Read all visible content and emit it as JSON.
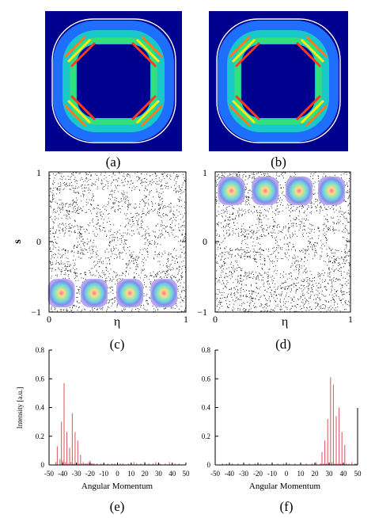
{
  "panels": {
    "a": {
      "label": "(a)"
    },
    "b": {
      "label": "(b)"
    },
    "c": {
      "label": "(c)"
    },
    "d": {
      "label": "(d)"
    },
    "e": {
      "label": "(e)"
    },
    "f": {
      "label": "(f)"
    }
  },
  "colors": {
    "field_bg": "#00008f",
    "ring": "#19c8c8",
    "boundary": "#ffffff",
    "bar": "#e0606a",
    "dots": "#000000"
  },
  "chart_data": [
    {
      "type": "scatter",
      "panel": "c",
      "xlabel": "η",
      "ylabel": "s",
      "xlim": [
        0,
        1
      ],
      "ylim": [
        -1,
        1
      ],
      "xticks": [
        "0",
        "1"
      ],
      "yticks": [
        "1",
        "0",
        "−1"
      ],
      "islands_s": -0.73,
      "islands_eta": [
        0.09,
        0.33,
        0.59,
        0.84
      ]
    },
    {
      "type": "scatter",
      "panel": "d",
      "xlabel": "η",
      "ylabel": "",
      "xlim": [
        0,
        1
      ],
      "ylim": [
        -1,
        1
      ],
      "xticks": [
        "0",
        "1"
      ],
      "yticks": [
        "1",
        "0",
        "−1"
      ],
      "islands_s": 0.73,
      "islands_eta": [
        0.12,
        0.37,
        0.62,
        0.86
      ]
    },
    {
      "type": "bar",
      "panel": "e",
      "xlabel": "Angular Momentum",
      "ylabel": "Intensity [a.u.]",
      "xlim": [
        -50,
        50
      ],
      "ylim": [
        0,
        0.8
      ],
      "xticks": [
        "-50",
        "-40",
        "-30",
        "-20",
        "-10",
        "0",
        "10",
        "20",
        "30",
        "40",
        "50"
      ],
      "yticks": [
        "0",
        "0.2",
        "0.4",
        "0.6",
        "0.8"
      ],
      "x": [
        -45,
        -44,
        -42,
        -41,
        -40,
        -39,
        -38,
        -37,
        -36,
        -35,
        -34,
        -33,
        -32,
        -31,
        -30,
        -29,
        -28,
        -27,
        -26,
        -25,
        -24,
        -23,
        -22,
        -21,
        -20,
        -19,
        -18,
        -17,
        -15,
        -12,
        -10,
        -7,
        -4,
        -2,
        0,
        2,
        4,
        8,
        12,
        14,
        17,
        20,
        23,
        26,
        28,
        31,
        35,
        38,
        42,
        45
      ],
      "values": [
        0.02,
        0.13,
        0.04,
        0.3,
        0.03,
        0.57,
        0.02,
        0.23,
        0.01,
        0.12,
        0.02,
        0.36,
        0.01,
        0.23,
        0.01,
        0.17,
        0.01,
        0.07,
        0.01,
        0.02,
        0.01,
        0.01,
        0.01,
        0.02,
        0.03,
        0.01,
        0.01,
        0.01,
        0.01,
        0.01,
        0.01,
        0.01,
        0.01,
        0.01,
        0.01,
        0.01,
        0.01,
        0.01,
        0.02,
        0.01,
        0.01,
        0.02,
        0.01,
        0.01,
        0.02,
        0.01,
        0.01,
        0.02,
        0.01,
        0.01
      ]
    },
    {
      "type": "bar",
      "panel": "f",
      "xlabel": "Angular Momentum",
      "ylabel": "",
      "xlim": [
        -50,
        50
      ],
      "ylim": [
        0,
        0.8
      ],
      "xticks": [
        "-50",
        "-40",
        "-30",
        "-20",
        "-10",
        "0",
        "10",
        "20",
        "30",
        "40",
        "50"
      ],
      "yticks": [
        "0",
        "0.2",
        "0.4",
        "0.6",
        "0.8"
      ],
      "x": [
        -45,
        -42,
        -38,
        -34,
        -30,
        -26,
        -22,
        -18,
        -14,
        -10,
        -6,
        -2,
        2,
        6,
        10,
        14,
        18,
        21,
        24,
        25,
        26,
        27,
        28,
        29,
        30,
        31,
        32,
        33,
        34,
        35,
        36,
        37,
        38,
        39,
        40,
        41,
        42,
        44,
        46,
        48,
        49
      ],
      "values": [
        0.01,
        0.01,
        0.01,
        0.01,
        0.01,
        0.01,
        0.01,
        0.01,
        0.01,
        0.01,
        0.01,
        0.01,
        0.01,
        0.01,
        0.01,
        0.01,
        0.01,
        0.02,
        0.01,
        0.09,
        0.01,
        0.17,
        0.01,
        0.32,
        0.01,
        0.61,
        0.02,
        0.56,
        0.01,
        0.34,
        0.01,
        0.4,
        0.01,
        0.23,
        0.01,
        0.14,
        0.01,
        0.01,
        0.02,
        0.01,
        0.01
      ]
    }
  ]
}
